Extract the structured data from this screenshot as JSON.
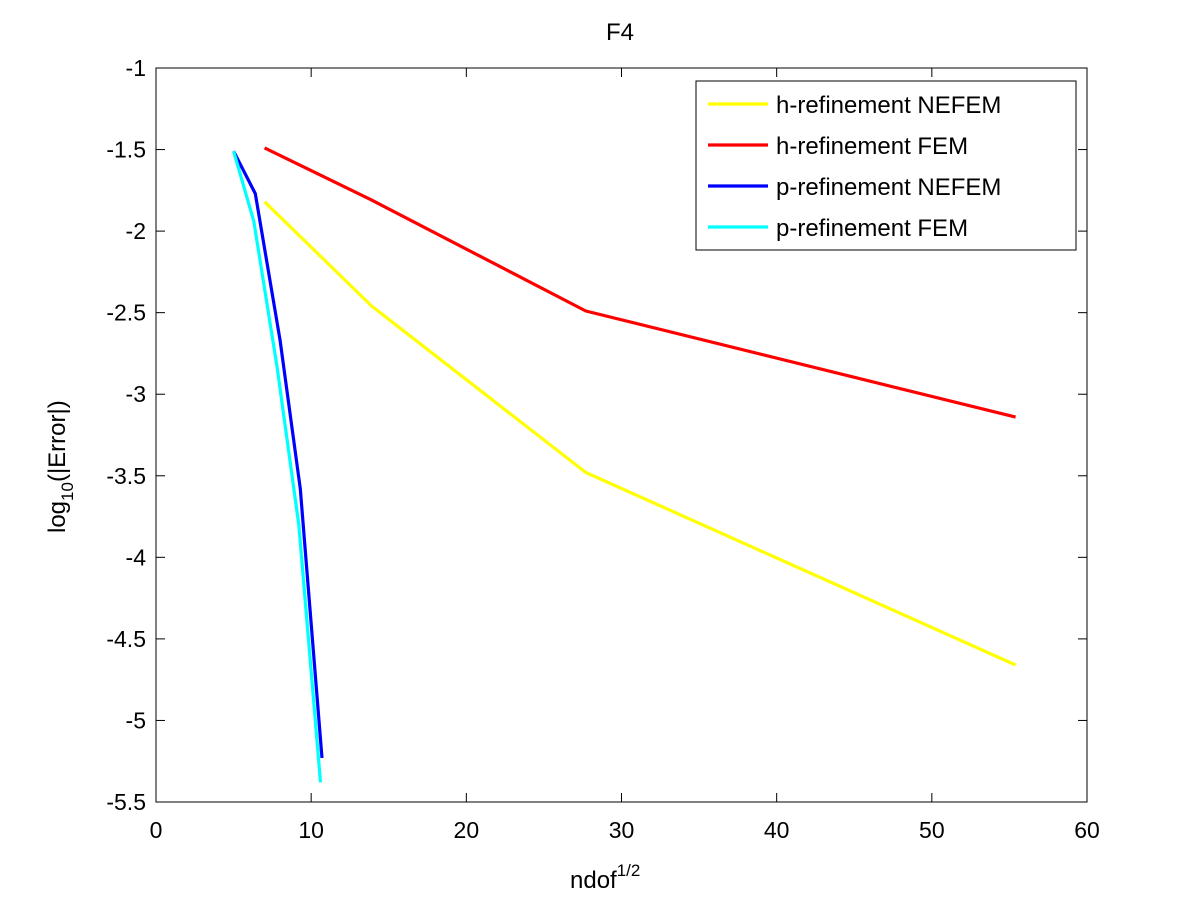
{
  "chart_data": {
    "type": "line",
    "title": "F4",
    "xlabel": {
      "base": "ndof",
      "sup": "1/2"
    },
    "ylabel": {
      "base": "log",
      "sub": "10",
      "rest": "(|Error|)"
    },
    "xlim": [
      0,
      60
    ],
    "ylim": [
      -5.5,
      -1
    ],
    "xticks": [
      0,
      10,
      20,
      30,
      40,
      50,
      60
    ],
    "yticks": [
      -5.5,
      -5,
      -4.5,
      -4,
      -3.5,
      -3,
      -2.5,
      -2,
      -1.5,
      -1
    ],
    "xtick_labels": [
      "0",
      "10",
      "20",
      "30",
      "40",
      "50",
      "60"
    ],
    "ytick_labels": [
      "-5.5",
      "-5",
      "-4.5",
      "-4",
      "-3.5",
      "-3",
      "-2.5",
      "-2",
      "-1.5",
      "-1"
    ],
    "grid": false,
    "legend_position": "top-right",
    "series": [
      {
        "name": "h-refinement NEFEM",
        "color": "#ffff00",
        "x": [
          7.0,
          13.9,
          27.7,
          55.4
        ],
        "y": [
          -1.82,
          -2.46,
          -3.48,
          -4.66
        ]
      },
      {
        "name": "h-refinement FEM",
        "color": "#ff0000",
        "x": [
          7.0,
          13.9,
          27.7,
          55.4
        ],
        "y": [
          -1.49,
          -1.81,
          -2.49,
          -3.14
        ]
      },
      {
        "name": "p-refinement NEFEM",
        "color": "#0000ff",
        "x": [
          5.0,
          6.4,
          8.0,
          9.3,
          10.7
        ],
        "y": [
          -1.51,
          -1.77,
          -2.67,
          -3.58,
          -5.23
        ]
      },
      {
        "name": "p-refinement FEM",
        "color": "#00ffff",
        "x": [
          5.0,
          6.3,
          7.8,
          9.2,
          10.6
        ],
        "y": [
          -1.51,
          -1.94,
          -2.83,
          -3.8,
          -5.38
        ]
      }
    ]
  }
}
